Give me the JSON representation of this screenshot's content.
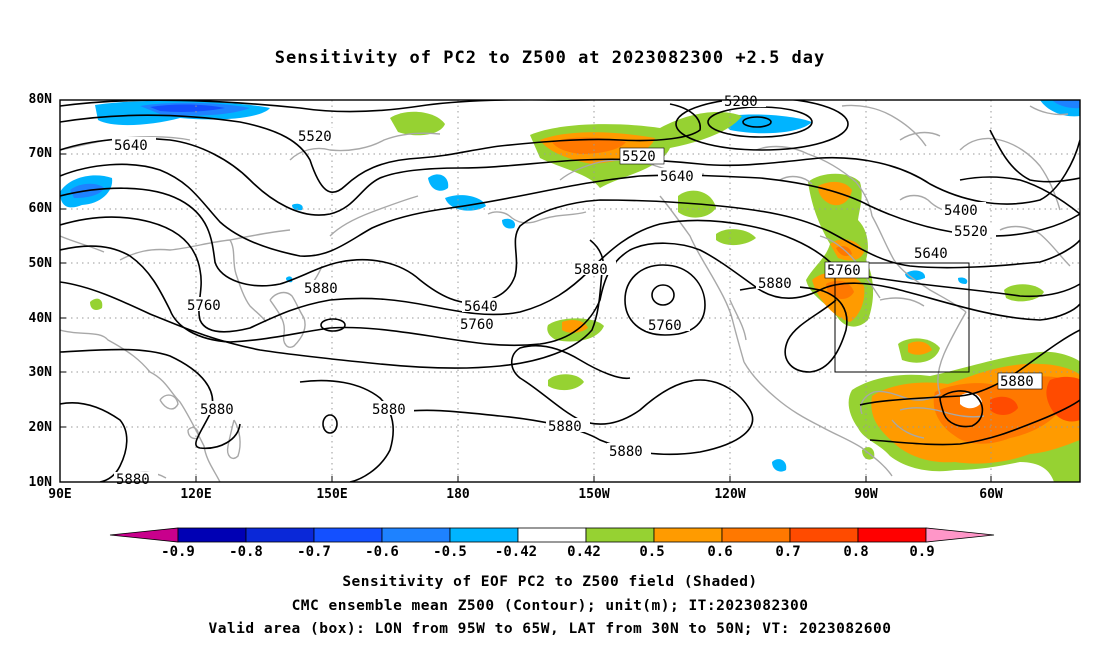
{
  "title": "Sensitivity of PC2 to Z500 at 2023082300 +2.5 day",
  "lat_labels": [
    "80N",
    "70N",
    "60N",
    "50N",
    "40N",
    "30N",
    "20N",
    "10N"
  ],
  "lon_labels": [
    "90E",
    "120E",
    "150E",
    "180",
    "150W",
    "120W",
    "90W",
    "60W"
  ],
  "contour_labels": [
    "5280",
    "5520",
    "5640",
    "5520",
    "5640",
    "5400",
    "5520",
    "5640",
    "5760",
    "5880",
    "5880",
    "5640",
    "5760",
    "5760",
    "5880",
    "5760",
    "5880",
    "5880",
    "5880",
    "5880",
    "5880",
    "5880"
  ],
  "colorbar": {
    "labels": [
      "-0.9",
      "-0.8",
      "-0.7",
      "-0.6",
      "-0.5",
      "-0.42",
      "0.42",
      "0.5",
      "0.6",
      "0.7",
      "0.8",
      "0.9"
    ],
    "colors": [
      "#0000b4",
      "#0a28d8",
      "#1450ff",
      "#1e82ff",
      "#00b4ff",
      "#ffffff",
      "#96d232",
      "#ff9b00",
      "#ff7800",
      "#ff4b00",
      "#ff0000"
    ],
    "low_end_color": "#c8008c",
    "high_end_color": "#ff96c8"
  },
  "caption_lines": [
    "Sensitivity of EOF PC2 to Z500 field (Shaded)",
    "CMC ensemble mean Z500 (Contour); unit(m); IT:2023082300",
    "Valid area (box): LON from 95W to 65W, LAT from 30N to 50N; VT: 2023082600"
  ],
  "colors": {
    "contour": "#000000",
    "coastline": "#a8a8a8",
    "grid": "#9a9a9a",
    "box": "#000000"
  }
}
